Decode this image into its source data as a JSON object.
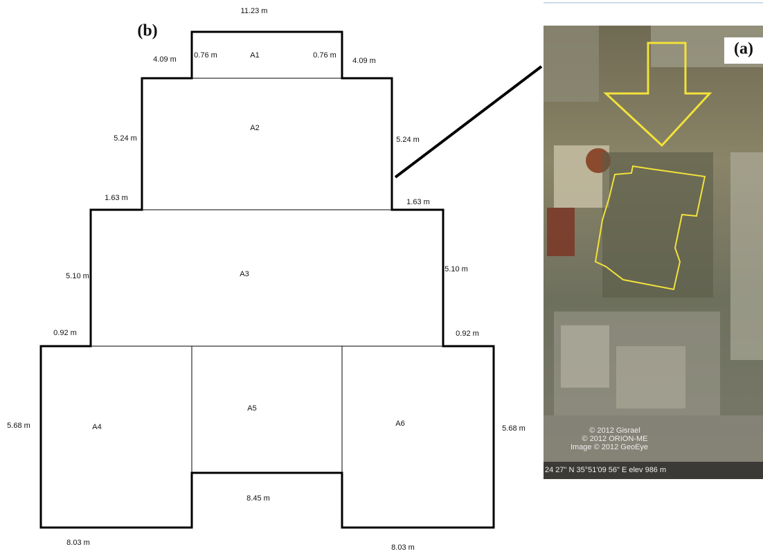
{
  "plan": {
    "label": "(b)",
    "dimensions": [
      "11.23 m",
      "4.09 m",
      "0.76 m",
      "0.76 m",
      "4.09 m",
      "5.24 m",
      "5.24 m",
      "1.63 m",
      "1.63 m",
      "5.10 m",
      "5.10 m",
      "0.92 m",
      "0.92 m",
      "5.68 m",
      "5.68 m",
      "8.45 m",
      "8.03 m",
      "8.03 m"
    ],
    "areas": [
      "A1",
      "A2",
      "A3",
      "A4",
      "A5",
      "A6"
    ]
  },
  "image": {
    "label": "(a)",
    "credits": [
      "© 2012 Gisrael",
      "© 2012 ORION-ME",
      "Image © 2012 GeoEye"
    ],
    "coordinates": "24 27\" N  35°51'09 56\" E  elev  986 m"
  }
}
